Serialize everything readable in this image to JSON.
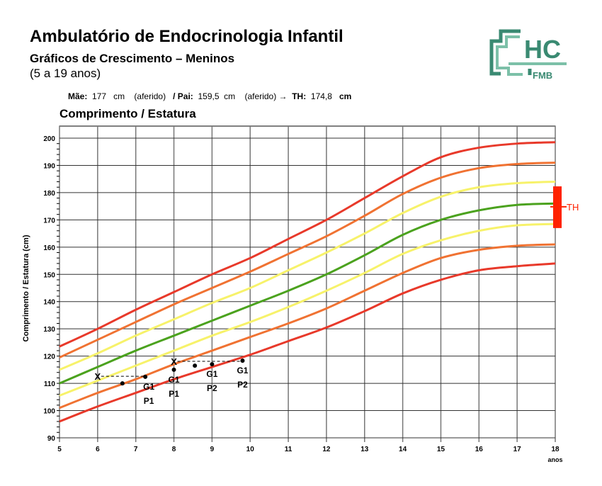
{
  "header": {
    "title": "Ambulatório de Endocrinologia Infantil",
    "subtitle": "Gráficos de Crescimento – Meninos",
    "age_range": "(5 a 19 anos)",
    "logo_text": "HC",
    "logo_subtext": "FMB"
  },
  "parents": {
    "mother_label": "Mãe:",
    "mother_value": "177",
    "mother_unit": "cm",
    "mother_note": "(aferido)",
    "father_label": "/ Pai:",
    "father_value": "159,5",
    "father_unit": "cm",
    "father_note": "(aferido)",
    "arrow": "→",
    "th_label": "TH:",
    "th_value": "174,8",
    "th_unit": "cm"
  },
  "colors": {
    "red": "#e8392a",
    "orange": "#f07232",
    "yellow": "#f7f26a",
    "green": "#4ba21e",
    "th_bar": "#ff2200",
    "logo": "#3a8a72",
    "logo_light": "#7cc0a8"
  },
  "chart_data": {
    "type": "line",
    "title": "Comprimento / Estatura",
    "ylabel": "Comprimento / Estatura (cm)",
    "xlabel": "anos",
    "xlim": [
      5,
      18
    ],
    "ylim": [
      90,
      200
    ],
    "x_ticks": [
      5,
      6,
      7,
      8,
      9,
      10,
      11,
      12,
      13,
      14,
      15,
      16,
      17,
      18
    ],
    "y_ticks": [
      90,
      100,
      110,
      120,
      130,
      140,
      150,
      160,
      170,
      180,
      190,
      200
    ],
    "grid": true,
    "x": [
      5,
      6,
      7,
      8,
      9,
      10,
      11,
      12,
      13,
      14,
      15,
      16,
      17,
      18
    ],
    "series": [
      {
        "color": "red",
        "values": [
          123.5,
          130,
          137,
          143.5,
          150,
          156,
          163,
          170,
          178,
          186,
          193,
          196.5,
          198,
          198.5
        ]
      },
      {
        "color": "orange",
        "values": [
          119.5,
          126,
          132.5,
          139,
          145,
          151,
          157.5,
          164,
          171.5,
          179.5,
          185.5,
          189,
          190.5,
          191
        ]
      },
      {
        "color": "yellow",
        "values": [
          115,
          121,
          127.5,
          133.5,
          139.5,
          145,
          151.5,
          158,
          165,
          172.5,
          178.5,
          182,
          183.5,
          184
        ]
      },
      {
        "color": "green",
        "values": [
          110,
          116,
          122,
          127.5,
          133,
          138.5,
          144,
          150,
          157,
          164.5,
          170,
          173.5,
          175.5,
          176
        ]
      },
      {
        "color": "yellow",
        "values": [
          105.5,
          111,
          116.5,
          122,
          127.5,
          132.5,
          138,
          144,
          150.5,
          157.5,
          162.5,
          166,
          168,
          168.5
        ]
      },
      {
        "color": "orange",
        "values": [
          101,
          106.5,
          111.5,
          117,
          122,
          127,
          132,
          137.5,
          144,
          150.5,
          156,
          159,
          160.5,
          161
        ]
      },
      {
        "color": "red",
        "values": [
          96,
          101.5,
          106.5,
          111.5,
          116,
          120.5,
          125.5,
          130.5,
          136.5,
          143,
          148,
          151.5,
          153,
          154
        ]
      }
    ],
    "target_height": {
      "label": "TH",
      "center": 174.8,
      "range": [
        167,
        182.3
      ]
    },
    "bone_age_markers": [
      {
        "symbol": "X",
        "age": 6,
        "height": 112.6,
        "linked_age": 7.25
      },
      {
        "symbol": "X",
        "age": 8,
        "height": 118.1,
        "linked_age": 9.8
      }
    ],
    "measurements": [
      {
        "age": 6.65,
        "height": 110
      },
      {
        "age": 7.25,
        "height": 112.4,
        "label1": "G1",
        "label2": "P1"
      },
      {
        "age": 8.0,
        "height": 115,
        "label1": "G1",
        "label2": "P1"
      },
      {
        "age": 8.55,
        "height": 116.5
      },
      {
        "age": 9.0,
        "height": 117,
        "label1": "G1",
        "label2": "P2"
      },
      {
        "age": 9.8,
        "height": 118.3,
        "label1": "G1",
        "label2": "P2"
      }
    ]
  }
}
